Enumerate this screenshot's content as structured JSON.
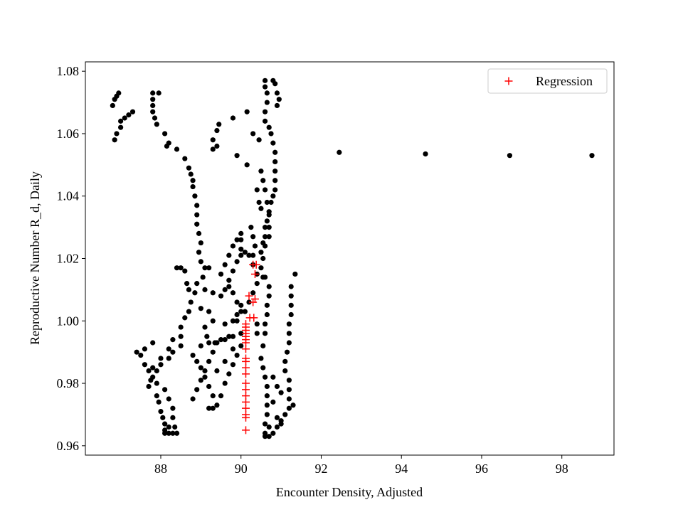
{
  "chart_data": {
    "type": "scatter",
    "xlabel": "Encounter Density, Adjusted",
    "ylabel": "Reproductive Number R_d, Daily",
    "xlim": [
      86.12,
      99.3
    ],
    "ylim": [
      0.957,
      1.083
    ],
    "xticks": [
      88,
      90,
      92,
      94,
      96,
      98
    ],
    "yticks": [
      0.96,
      0.98,
      {
        "value": 1.0,
        "label": "1.00"
      },
      1.02,
      1.04,
      1.06,
      1.08
    ],
    "legend": "upper right",
    "series": [
      {
        "color": "#000000",
        "marker": "circle",
        "x": [
          86.8,
          86.85,
          86.9,
          86.95,
          87.0,
          87.0,
          86.9,
          86.85,
          87.1,
          87.2,
          87.3,
          87.8,
          87.95,
          87.8,
          87.8,
          87.8,
          87.85,
          87.9,
          88.1,
          88.2,
          88.15,
          88.4,
          88.6,
          88.7,
          88.75,
          88.8,
          88.8,
          88.85,
          88.9,
          88.9,
          88.9,
          88.95,
          89.0,
          88.95,
          89.0,
          89.1,
          89.05,
          88.9,
          88.85,
          88.75,
          88.7,
          88.6,
          88.5,
          88.5,
          88.5,
          88.3,
          88.2,
          88.0,
          87.9,
          87.8,
          87.7,
          87.75,
          87.9,
          87.95,
          88.0,
          88.05,
          88.1,
          88.1,
          88.1,
          88.2,
          88.3,
          88.4,
          87.4,
          87.5,
          87.6,
          87.7,
          87.9,
          88.1,
          88.2,
          88.3,
          88.3,
          88.35,
          88.2,
          87.8,
          88.0,
          88.2,
          88.3,
          87.6,
          87.8,
          88.8,
          88.9,
          89.0,
          89.1,
          89.2,
          89.3,
          89.4,
          89.6,
          89.8,
          90.0,
          89.0,
          89.2,
          89.35,
          89.5,
          89.7,
          88.8,
          88.9,
          89.0,
          89.1,
          89.2,
          89.3,
          89.4,
          89.3,
          89.2,
          89.6,
          89.7,
          89.8,
          89.9,
          90.0,
          89.5,
          89.4,
          89.6,
          89.8,
          89.3,
          89.2,
          89.3,
          89.5,
          89.6,
          89.7,
          89.8,
          89.9,
          90.0,
          90.0,
          90.0,
          90.1,
          90.2,
          90.3,
          89.5,
          89.6,
          89.7,
          89.8,
          89.9,
          90.0,
          89.6,
          89.8,
          89.9,
          90.0,
          89.7,
          89.8,
          89.9,
          90.0,
          89.2,
          89.1,
          89.0,
          89.1,
          89.15,
          90.6,
          90.6,
          90.65,
          90.65,
          90.6,
          90.6,
          90.7,
          90.75,
          90.8,
          90.85,
          90.85,
          90.85,
          90.85,
          90.85,
          90.8,
          90.75,
          90.7,
          90.65,
          90.6,
          90.6,
          90.55,
          90.5,
          90.8,
          90.85,
          90.9,
          90.95,
          90.9,
          90.5,
          90.55,
          90.6,
          90.65,
          90.7,
          90.7,
          90.7,
          90.6,
          90.55,
          90.5,
          90.55,
          90.6,
          90.7,
          90.7,
          90.65,
          90.65,
          90.6,
          90.6,
          90.55,
          90.5,
          90.55,
          90.6,
          90.65,
          90.65,
          90.65,
          90.65,
          90.6,
          90.6,
          90.6,
          90.7,
          90.8,
          90.9,
          91.0,
          91.1,
          91.2,
          91.3,
          91.2,
          91.2,
          91.2,
          91.1,
          91.1,
          91.15,
          91.2,
          91.2,
          91.2,
          91.25,
          91.25,
          91.25,
          91.25,
          91.35,
          90.8,
          90.9,
          91.0,
          90.7,
          90.8,
          90.9,
          91.0,
          89.3,
          89.3,
          89.4,
          89.45,
          89.4,
          89.8,
          89.9,
          90.15,
          90.15,
          90.4,
          90.5,
          90.45,
          90.3,
          90.45,
          90.25,
          90.3,
          90.35,
          89.9,
          90.1,
          90.2,
          90.3,
          90.4,
          90.4,
          90.3,
          90.4,
          90.4,
          88.4,
          88.5,
          88.6,
          88.65,
          88.7,
          92.45,
          94.6,
          96.7,
          98.75
        ],
        "values": [
          1.069,
          1.071,
          1.072,
          1.073,
          1.064,
          1.062,
          1.06,
          1.058,
          1.065,
          1.066,
          1.067,
          1.073,
          1.073,
          1.071,
          1.069,
          1.067,
          1.065,
          1.063,
          1.06,
          1.057,
          1.056,
          1.055,
          1.052,
          1.049,
          1.047,
          1.045,
          1.043,
          1.04,
          1.037,
          1.034,
          1.031,
          1.028,
          1.025,
          1.022,
          1.019,
          1.017,
          1.014,
          1.012,
          1.009,
          1.006,
          1.003,
          1.001,
          0.998,
          0.995,
          0.992,
          0.99,
          0.988,
          0.986,
          0.984,
          0.982,
          0.979,
          0.981,
          0.976,
          0.974,
          0.971,
          0.969,
          0.967,
          0.965,
          0.964,
          0.964,
          0.964,
          0.964,
          0.99,
          0.989,
          0.986,
          0.984,
          0.98,
          0.978,
          0.975,
          0.972,
          0.969,
          0.966,
          0.966,
          0.985,
          0.988,
          0.991,
          0.994,
          0.991,
          0.993,
          0.975,
          0.978,
          0.981,
          0.984,
          0.987,
          0.99,
          0.993,
          0.994,
          0.995,
          0.996,
          0.992,
          0.993,
          0.993,
          0.994,
          0.995,
          0.989,
          0.987,
          0.985,
          0.982,
          0.979,
          0.976,
          0.973,
          0.972,
          0.972,
          0.98,
          0.983,
          0.986,
          0.989,
          0.992,
          0.976,
          0.984,
          0.987,
          0.991,
          1.0,
          1.003,
          1.009,
          1.015,
          1.018,
          1.021,
          1.024,
          1.026,
          1.028,
          1.026,
          1.023,
          1.022,
          1.021,
          1.021,
          1.008,
          1.01,
          1.011,
          1.009,
          1.006,
          1.003,
          0.999,
          1.0,
          1.002,
          1.005,
          1.013,
          1.016,
          1.019,
          1.021,
          1.017,
          1.01,
          1.004,
          0.998,
          0.995,
          1.077,
          1.075,
          1.073,
          1.07,
          1.067,
          1.064,
          1.062,
          1.06,
          1.057,
          1.054,
          1.051,
          1.048,
          1.045,
          1.042,
          1.04,
          1.038,
          1.035,
          1.032,
          1.03,
          1.027,
          1.025,
          1.022,
          1.077,
          1.076,
          1.073,
          1.071,
          1.069,
          1.048,
          1.045,
          1.042,
          1.038,
          1.034,
          1.03,
          1.027,
          1.024,
          1.02,
          1.017,
          1.014,
          1.014,
          1.011,
          1.008,
          1.005,
          1.002,
          0.999,
          0.996,
          0.992,
          0.988,
          0.985,
          0.982,
          0.979,
          0.976,
          0.973,
          0.97,
          0.967,
          0.964,
          0.963,
          0.963,
          0.964,
          0.966,
          0.968,
          0.97,
          0.972,
          0.973,
          0.975,
          0.978,
          0.981,
          0.984,
          0.987,
          0.99,
          0.993,
          0.996,
          0.999,
          1.002,
          1.005,
          1.008,
          1.011,
          1.015,
          0.974,
          0.969,
          0.967,
          0.966,
          0.982,
          0.979,
          0.977,
          1.055,
          1.058,
          1.061,
          1.063,
          1.056,
          1.065,
          1.053,
          1.067,
          1.05,
          1.042,
          1.036,
          1.038,
          1.06,
          1.058,
          1.03,
          1.027,
          1.024,
          1.0,
          1.003,
          1.006,
          1.009,
          1.012,
          1.015,
          1.018,
          0.999,
          0.996,
          1.017,
          1.017,
          1.016,
          1.012,
          1.01,
          1.054,
          1.0535,
          1.053,
          1.053
        ]
      },
      {
        "name": "Regression",
        "color": "#ff0000",
        "marker": "plus",
        "x": [
          90.12,
          90.12,
          90.12,
          90.12,
          90.12,
          90.12,
          90.12,
          90.12,
          90.12,
          90.12,
          90.12,
          90.12,
          90.12,
          90.12,
          90.12,
          90.12,
          90.12,
          90.12,
          90.12,
          90.12,
          90.22,
          90.32,
          90.3,
          90.35,
          90.2,
          90.35,
          90.38,
          90.3
        ],
        "values": [
          0.965,
          0.969,
          0.97,
          0.972,
          0.974,
          0.976,
          0.978,
          0.98,
          0.983,
          0.985,
          0.987,
          0.988,
          0.991,
          0.993,
          0.994,
          0.995,
          0.996,
          0.997,
          0.998,
          0.999,
          1.001,
          1.001,
          1.006,
          1.007,
          1.008,
          1.015,
          1.018,
          1.018
        ]
      }
    ]
  }
}
